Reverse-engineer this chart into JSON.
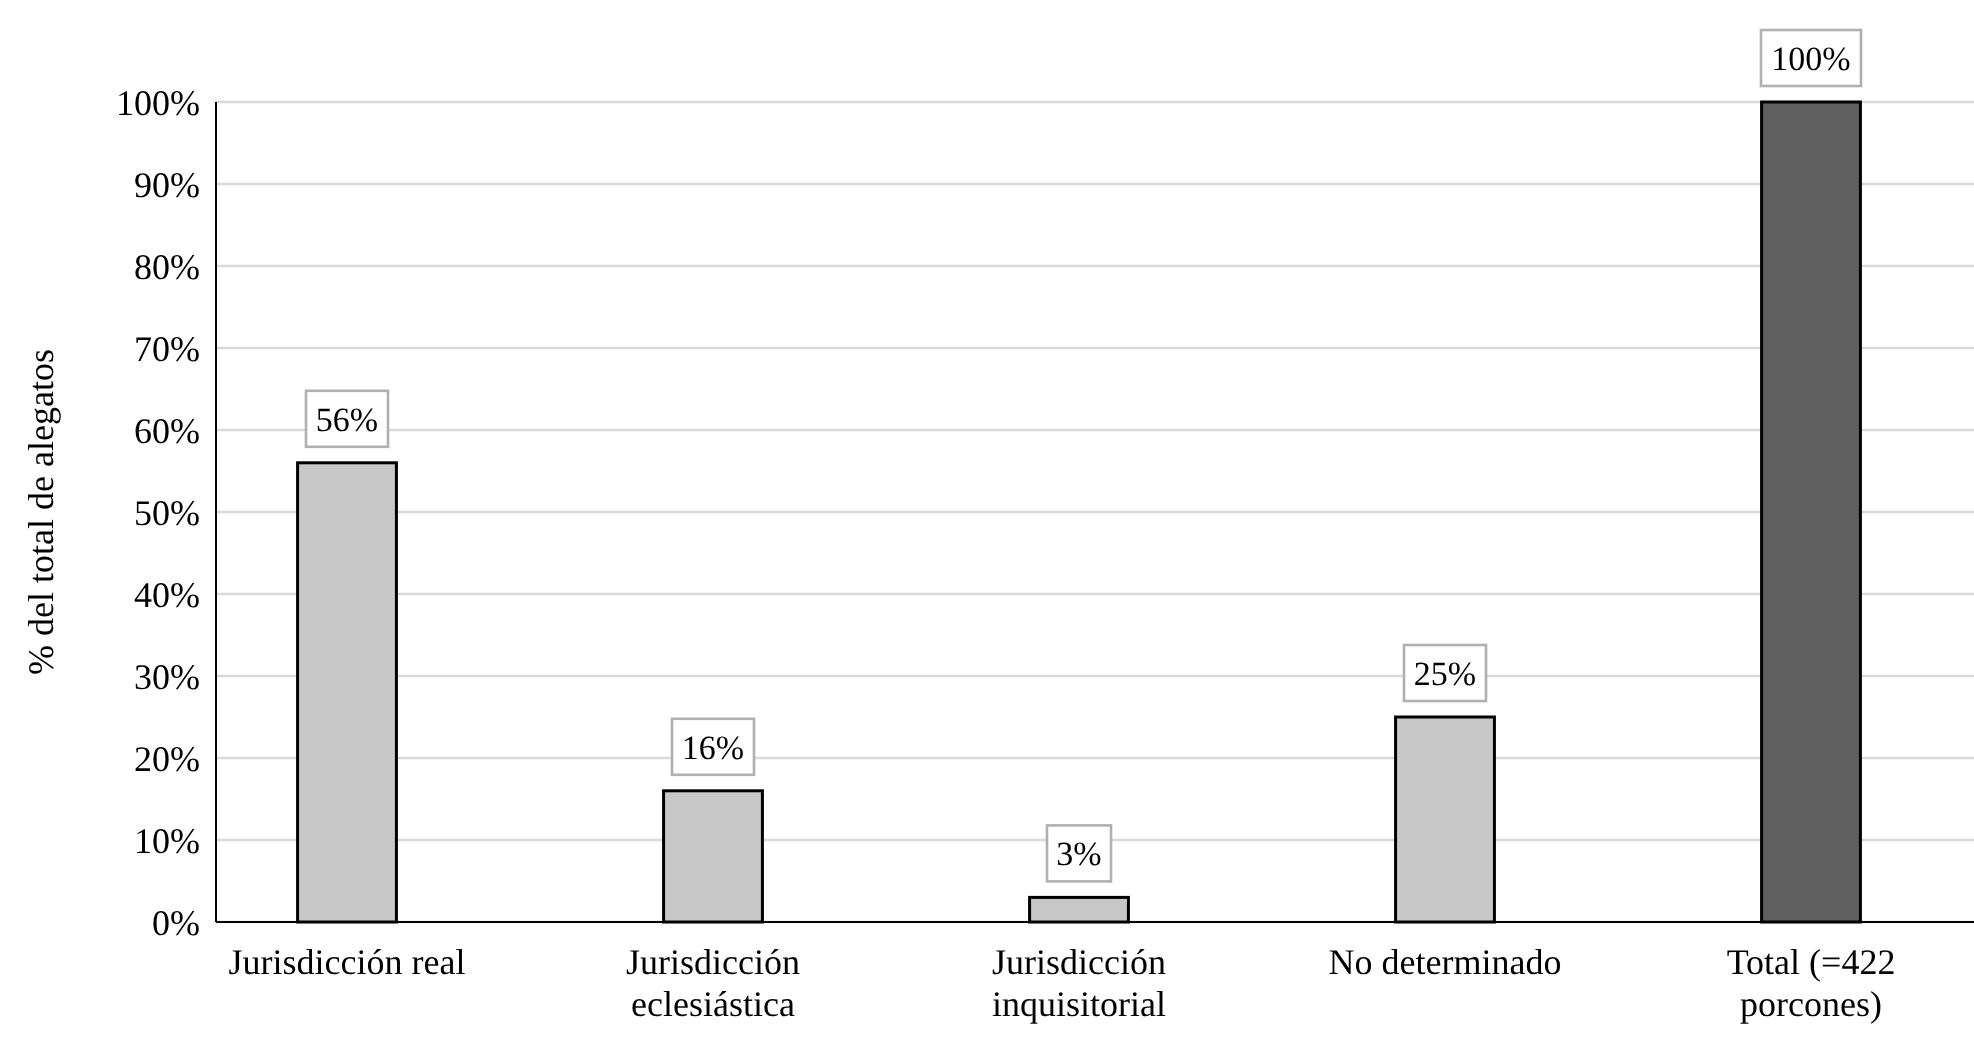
{
  "chart_data": {
    "type": "bar",
    "ylabel": "% del total de alegatos",
    "categories": [
      "Jurisdicción real",
      "Jurisdicción eclesiástica",
      "Jurisdicción inquisitorial",
      "No determinado",
      "Total (=422 porcones)"
    ],
    "values": [
      56,
      16,
      3,
      25,
      100
    ],
    "colors": [
      "#c8c8c8",
      "#c8c8c8",
      "#c8c8c8",
      "#c8c8c8",
      "#5f5f5f"
    ],
    "value_labels": [
      "56%",
      "16%",
      "3%",
      "25%",
      "100%"
    ],
    "ylim": [
      0,
      100
    ],
    "yticks": [
      {
        "value": 0,
        "label": "0%"
      },
      {
        "value": 10,
        "label": "10%"
      },
      {
        "value": 20,
        "label": "20%"
      },
      {
        "value": 30,
        "label": "30%"
      },
      {
        "value": 40,
        "label": "40%"
      },
      {
        "value": 50,
        "label": "50%"
      },
      {
        "value": 60,
        "label": "60%"
      },
      {
        "value": 70,
        "label": "70%"
      },
      {
        "value": 80,
        "label": "80%"
      },
      {
        "value": 90,
        "label": "90%"
      },
      {
        "value": 100,
        "label": "100%"
      }
    ],
    "grid": "y"
  }
}
